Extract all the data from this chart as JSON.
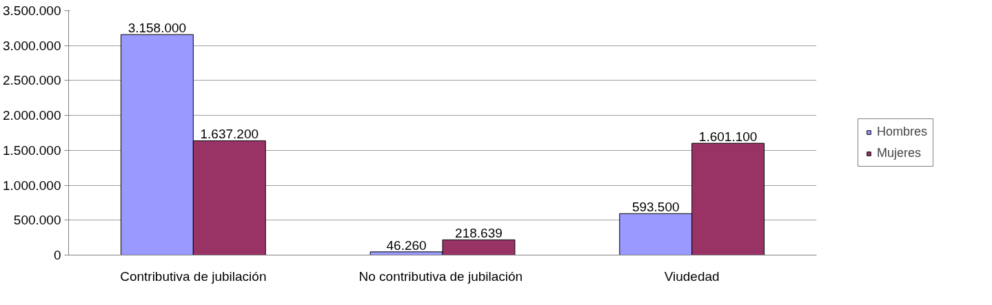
{
  "chart_data": {
    "type": "bar",
    "categories": [
      "Contributiva de jubilación",
      "No contributiva  de jubilación",
      "Viudedad"
    ],
    "series": [
      {
        "name": "Hombres",
        "color": "#9999ff",
        "values": [
          3158000,
          46260,
          593500
        ],
        "value_labels": [
          "3.158.000",
          "46.260",
          "593.500"
        ]
      },
      {
        "name": "Mujeres",
        "color": "#993366",
        "values": [
          1637200,
          218639,
          1601100
        ],
        "value_labels": [
          "1.637.200",
          "218.639",
          "1.601.100"
        ]
      }
    ],
    "ylim": [
      0,
      3500000
    ],
    "yticks": [
      0,
      {
        "value": 500000,
        "label": "500.000"
      },
      {
        "value": 1000000,
        "label": "1.000.000"
      },
      {
        "value": 1500000,
        "label": "1.500.000"
      },
      {
        "value": 2000000,
        "label": "2.000.000"
      },
      {
        "value": 2500000,
        "label": "2.500.000"
      },
      {
        "value": 3000000,
        "label": "3.000.000"
      },
      {
        "value": 3500000,
        "label": "3.500.000"
      }
    ],
    "grid": "y",
    "legend": "right"
  }
}
